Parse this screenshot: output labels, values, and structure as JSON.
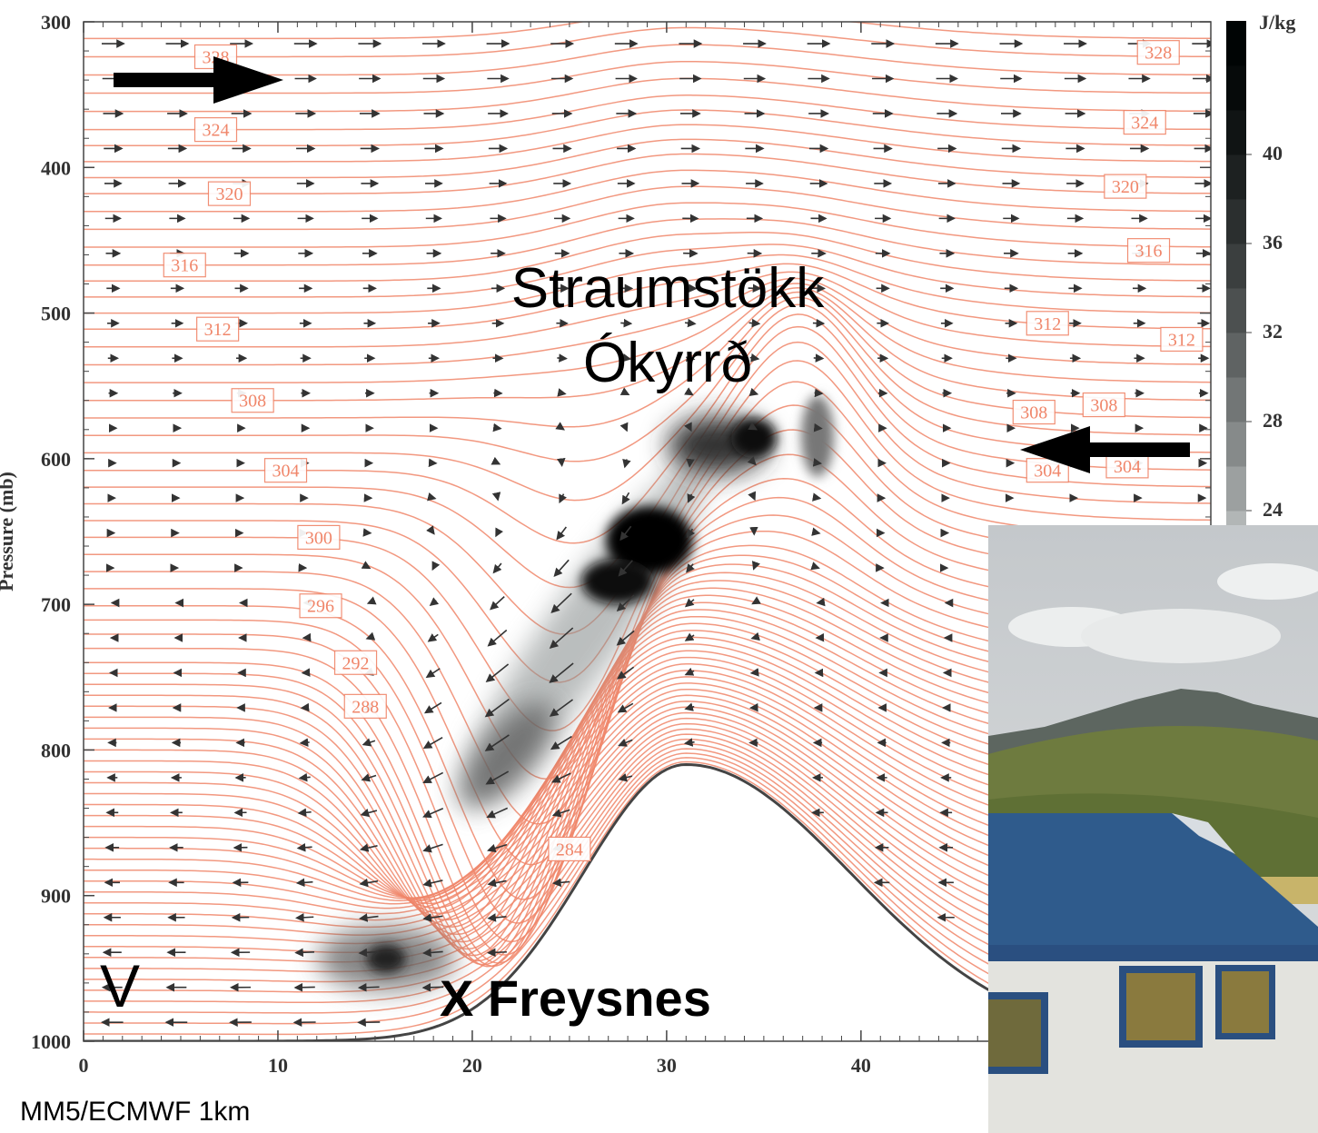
{
  "chart_data": {
    "type": "cross-section",
    "xlim": [
      0,
      58
    ],
    "xticks": [
      0,
      10,
      20,
      30,
      40
    ],
    "ylim": [
      1000,
      300
    ],
    "yticks": [
      300,
      400,
      500,
      600,
      700,
      800,
      900,
      1000
    ],
    "ylabel": "Pressure (mb)",
    "contour_color": "#f0866a",
    "contour_labels": [
      {
        "value": 328,
        "x": 6.8,
        "p": 324
      },
      {
        "value": 324,
        "x": 6.8,
        "p": 374
      },
      {
        "value": 320,
        "x": 7.5,
        "p": 418
      },
      {
        "value": 316,
        "x": 5.2,
        "p": 467
      },
      {
        "value": 312,
        "x": 6.9,
        "p": 511
      },
      {
        "value": 308,
        "x": 8.7,
        "p": 560
      },
      {
        "value": 304,
        "x": 10.4,
        "p": 608
      },
      {
        "value": 300,
        "x": 12.1,
        "p": 654
      },
      {
        "value": 296,
        "x": 12.2,
        "p": 701
      },
      {
        "value": 292,
        "x": 14.0,
        "p": 740
      },
      {
        "value": 288,
        "x": 14.5,
        "p": 770
      },
      {
        "value": 284,
        "x": 25.0,
        "p": 868
      },
      {
        "value": 328,
        "x": 55.3,
        "p": 321
      },
      {
        "value": 324,
        "x": 54.6,
        "p": 369
      },
      {
        "value": 320,
        "x": 53.6,
        "p": 413
      },
      {
        "value": 316,
        "x": 54.8,
        "p": 457
      },
      {
        "value": 312,
        "x": 49.6,
        "p": 507
      },
      {
        "value": 312,
        "x": 56.5,
        "p": 518
      },
      {
        "value": 308,
        "x": 48.9,
        "p": 568
      },
      {
        "value": 308,
        "x": 52.5,
        "p": 563
      },
      {
        "value": 304,
        "x": 49.6,
        "p": 608
      },
      {
        "value": 304,
        "x": 53.7,
        "p": 605
      }
    ],
    "colorbar": {
      "unit": "J/kg",
      "lim": [
        20,
        46
      ],
      "ticks": [
        24,
        28,
        32,
        36,
        40
      ]
    },
    "annotations": [
      "Straumstökk",
      "Ókyrrð",
      "V",
      "X Freysnes"
    ],
    "source": "MM5/ECMWF 1km"
  }
}
